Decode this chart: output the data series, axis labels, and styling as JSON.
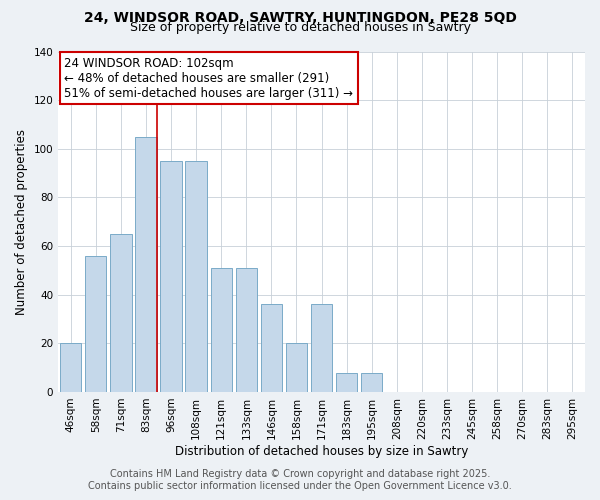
{
  "title1": "24, WINDSOR ROAD, SAWTRY, HUNTINGDON, PE28 5QD",
  "title2": "Size of property relative to detached houses in Sawtry",
  "categories": [
    "46sqm",
    "58sqm",
    "71sqm",
    "83sqm",
    "96sqm",
    "108sqm",
    "121sqm",
    "133sqm",
    "146sqm",
    "158sqm",
    "171sqm",
    "183sqm",
    "195sqm",
    "208sqm",
    "220sqm",
    "233sqm",
    "245sqm",
    "258sqm",
    "270sqm",
    "283sqm",
    "295sqm"
  ],
  "values": [
    20,
    56,
    65,
    105,
    95,
    95,
    51,
    51,
    36,
    20,
    36,
    8,
    8,
    0,
    0,
    0,
    0,
    0,
    0,
    0,
    0
  ],
  "bar_color": "#c5d8ea",
  "bar_edge_color": "#7aaac8",
  "vline_color": "#cc0000",
  "annotation_text": "24 WINDSOR ROAD: 102sqm\n← 48% of detached houses are smaller (291)\n51% of semi-detached houses are larger (311) →",
  "ylabel": "Number of detached properties",
  "xlabel": "Distribution of detached houses by size in Sawtry",
  "ylim": [
    0,
    140
  ],
  "yticks": [
    0,
    20,
    40,
    60,
    80,
    100,
    120,
    140
  ],
  "footer1": "Contains HM Land Registry data © Crown copyright and database right 2025.",
  "footer2": "Contains public sector information licensed under the Open Government Licence v3.0.",
  "bg_color": "#edf1f5",
  "plot_bg_color": "#ffffff",
  "title_fontsize": 10,
  "subtitle_fontsize": 9,
  "annotation_fontsize": 8.5,
  "axis_fontsize": 8.5,
  "tick_fontsize": 7.5,
  "footer_fontsize": 7
}
